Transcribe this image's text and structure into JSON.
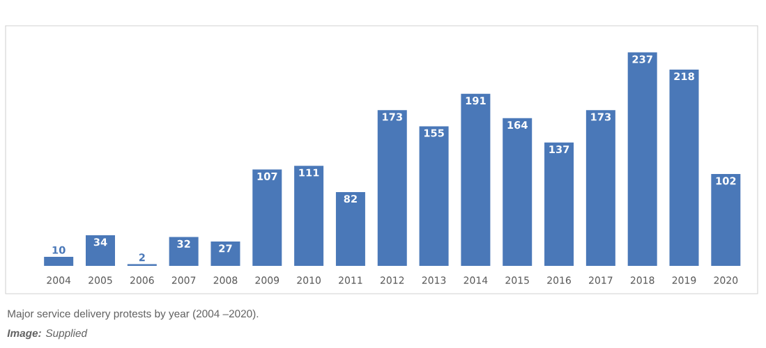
{
  "chart_data": {
    "type": "bar",
    "categories": [
      "2004",
      "2005",
      "2006",
      "2007",
      "2008",
      "2009",
      "2010",
      "2011",
      "2012",
      "2013",
      "2014",
      "2015",
      "2016",
      "2017",
      "2018",
      "2019",
      "2020"
    ],
    "values": [
      10,
      34,
      2,
      32,
      27,
      107,
      111,
      82,
      173,
      155,
      191,
      164,
      137,
      173,
      237,
      218,
      102
    ],
    "color": "#4a78b8",
    "data_labels": true,
    "annotations": [
      "Major service delivery protests by year (2004 –2020).",
      "**Image:** Supplied"
    ]
  }
}
